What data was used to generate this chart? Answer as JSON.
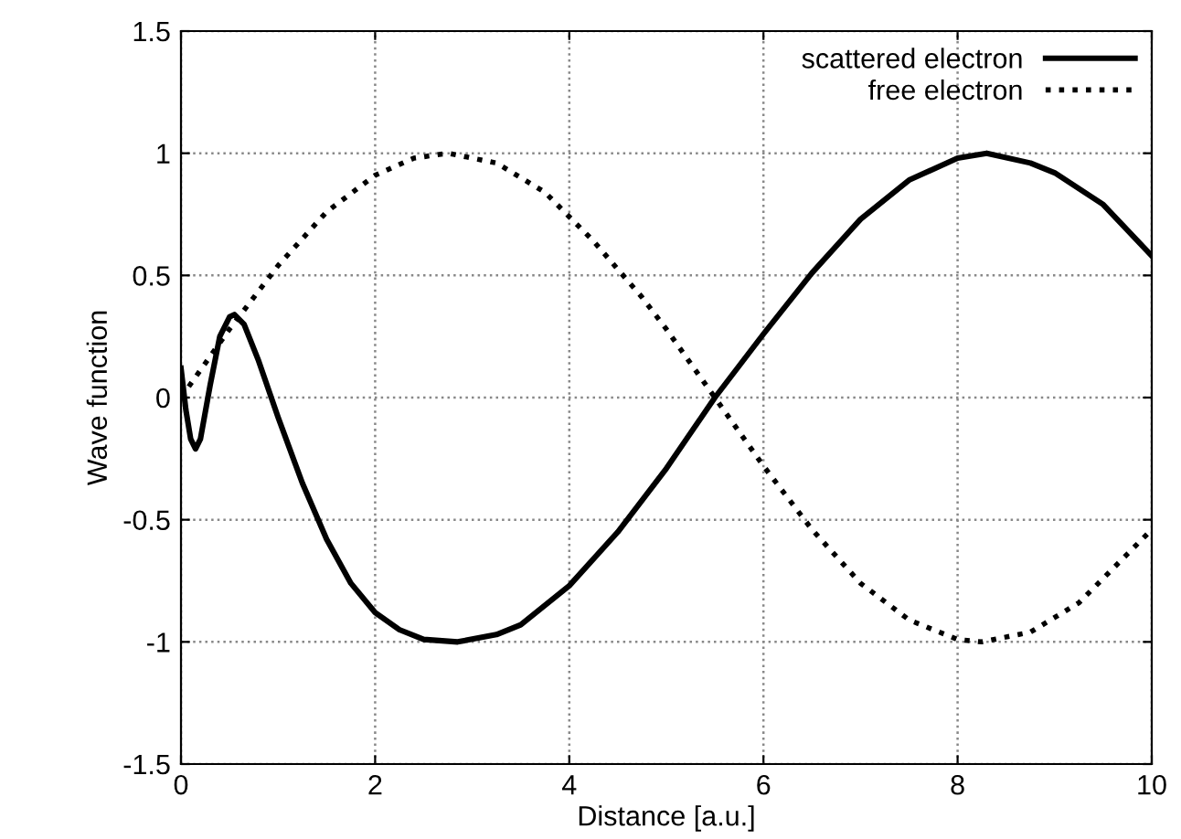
{
  "chart_data": {
    "type": "line",
    "xlabel": "Distance [a.u.]",
    "ylabel": "Wave function",
    "xlim": [
      0,
      10
    ],
    "ylim": [
      -1.5,
      1.5
    ],
    "xticks": [
      0,
      2,
      4,
      6,
      8,
      10
    ],
    "yticks": [
      -1.5,
      -1,
      -0.5,
      0,
      0.5,
      1,
      1.5
    ],
    "grid": true,
    "legend": "top right",
    "marker": "none",
    "series": [
      {
        "name": "scattered electron",
        "color": "#000000",
        "line_style": "solid",
        "x": [
          0,
          0.05,
          0.1,
          0.15,
          0.2,
          0.3,
          0.4,
          0.5,
          0.55,
          0.65,
          0.8,
          1.0,
          1.25,
          1.5,
          1.75,
          2.0,
          2.25,
          2.5,
          2.85,
          3.25,
          3.5,
          4.0,
          4.5,
          5.0,
          5.5,
          6.0,
          6.5,
          7.0,
          7.5,
          8.0,
          8.3,
          8.75,
          9.0,
          9.5,
          10
        ],
        "values": [
          0.12,
          -0.05,
          -0.17,
          -0.21,
          -0.17,
          0.05,
          0.25,
          0.33,
          0.34,
          0.3,
          0.15,
          -0.08,
          -0.35,
          -0.58,
          -0.76,
          -0.88,
          -0.95,
          -0.99,
          -1.0,
          -0.97,
          -0.93,
          -0.77,
          -0.55,
          -0.29,
          0.0,
          0.26,
          0.51,
          0.73,
          0.89,
          0.98,
          1.0,
          0.96,
          0.92,
          0.79,
          0.58
        ]
      },
      {
        "name": "free electron",
        "color": "#000000",
        "line_style": "dotted",
        "x": [
          0,
          0.25,
          0.5,
          0.75,
          1.0,
          1.5,
          2.0,
          2.4,
          2.75,
          3.25,
          3.75,
          4.25,
          4.75,
          5.0,
          5.5,
          6.0,
          6.5,
          7.0,
          7.5,
          8.0,
          8.25,
          8.75,
          9.25,
          9.75,
          10
        ],
        "values": [
          0.0,
          0.14,
          0.28,
          0.41,
          0.54,
          0.76,
          0.91,
          0.98,
          1.0,
          0.96,
          0.84,
          0.64,
          0.41,
          0.28,
          0.0,
          -0.28,
          -0.54,
          -0.76,
          -0.91,
          -0.99,
          -1.0,
          -0.96,
          -0.84,
          -0.64,
          -0.54
        ]
      }
    ]
  }
}
